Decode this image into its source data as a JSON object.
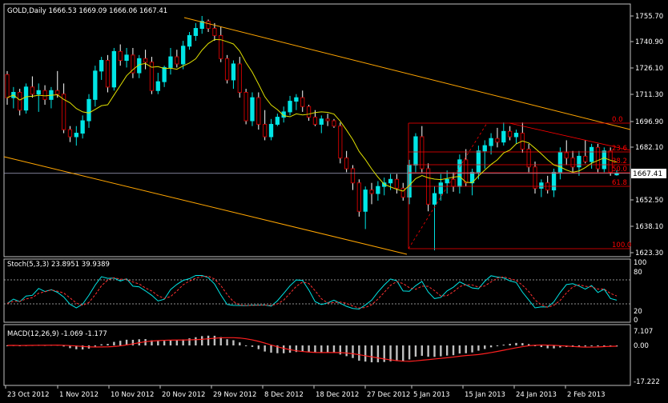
{
  "main_panel": {
    "title": "GOLD,Daily  1666.53 1669.09 1666.06 1667.41",
    "current_price": "1667.41",
    "y_ticks": [
      "1755.70",
      "1740.90",
      "1726.10",
      "1711.30",
      "1696.90",
      "1682.10",
      "1667.41",
      "1652.50",
      "1638.10",
      "1623.30"
    ],
    "fib_levels": [
      "0.0",
      "23.6",
      "38.2",
      "50.0",
      "61.8",
      "100.0"
    ]
  },
  "stoch_panel": {
    "title": "Stoch(5,3,3) 23.8951 39.9389",
    "y_ticks": [
      "100",
      "80",
      "20",
      "0"
    ]
  },
  "macd_panel": {
    "title": "MACD(12,26,9) -1.069 -1.177",
    "y_ticks": [
      "7.107",
      "0.00",
      "-17.222"
    ]
  },
  "x_ticks": [
    "23 Oct 2012",
    "1 Nov 2012",
    "10 Nov 2012",
    "20 Nov 2012",
    "29 Nov 2012",
    "8 Dec 2012",
    "18 Dec 2012",
    "27 Dec 2012",
    "5 Jan 2013",
    "15 Jan 2013",
    "24 Jan 2013",
    "2 Feb 2013"
  ],
  "colors": {
    "background": "#000000",
    "bull_candle": "#00e5e5",
    "bear_candle": "#c00000",
    "ma_line": "#e0e000",
    "channel": "#ffa500",
    "fib": "#ff0000",
    "stoch_main": "#00e5e5",
    "stoch_signal": "#ff3030",
    "macd_hist": "#c0c0c0",
    "macd_signal": "#ff2020"
  },
  "chart_data": {
    "type": "candlestick",
    "symbol": "GOLD",
    "timeframe": "Daily",
    "candles_ohlc": [
      [
        1723,
        1725,
        1706,
        1710
      ],
      [
        1710,
        1716,
        1704,
        1713
      ],
      [
        1713,
        1715,
        1700,
        1703
      ],
      [
        1703,
        1718,
        1701,
        1716
      ],
      [
        1716,
        1722,
        1710,
        1712
      ],
      [
        1712,
        1718,
        1702,
        1714
      ],
      [
        1714,
        1717,
        1706,
        1709
      ],
      [
        1709,
        1716,
        1704,
        1714
      ],
      [
        1714,
        1725,
        1710,
        1712
      ],
      [
        1712,
        1718,
        1690,
        1692
      ],
      [
        1692,
        1694,
        1685,
        1688
      ],
      [
        1688,
        1694,
        1683,
        1690
      ],
      [
        1690,
        1700,
        1687,
        1697
      ],
      [
        1697,
        1712,
        1693,
        1709
      ],
      [
        1709,
        1728,
        1705,
        1725
      ],
      [
        1725,
        1733,
        1720,
        1731
      ],
      [
        1731,
        1734,
        1713,
        1716
      ],
      [
        1716,
        1738,
        1714,
        1736
      ],
      [
        1736,
        1740,
        1728,
        1731
      ],
      [
        1731,
        1738,
        1727,
        1734
      ],
      [
        1734,
        1738,
        1721,
        1724
      ],
      [
        1724,
        1734,
        1721,
        1732
      ],
      [
        1732,
        1737,
        1726,
        1730
      ],
      [
        1730,
        1733,
        1712,
        1714
      ],
      [
        1714,
        1724,
        1712,
        1719
      ],
      [
        1719,
        1728,
        1716,
        1727
      ],
      [
        1727,
        1738,
        1723,
        1733
      ],
      [
        1733,
        1737,
        1727,
        1729
      ],
      [
        1729,
        1742,
        1726,
        1739
      ],
      [
        1739,
        1747,
        1737,
        1745
      ],
      [
        1745,
        1752,
        1742,
        1749
      ],
      [
        1749,
        1756,
        1746,
        1753
      ],
      [
        1753,
        1754,
        1747,
        1749
      ],
      [
        1749,
        1752,
        1742,
        1745
      ],
      [
        1745,
        1750,
        1730,
        1732
      ],
      [
        1732,
        1734,
        1718,
        1720
      ],
      [
        1720,
        1731,
        1715,
        1729
      ],
      [
        1729,
        1733,
        1710,
        1713
      ],
      [
        1713,
        1715,
        1695,
        1697
      ],
      [
        1697,
        1713,
        1694,
        1710
      ],
      [
        1710,
        1713,
        1692,
        1695
      ],
      [
        1695,
        1703,
        1686,
        1688
      ],
      [
        1688,
        1698,
        1686,
        1695
      ],
      [
        1695,
        1701,
        1694,
        1699
      ],
      [
        1699,
        1705,
        1696,
        1702
      ],
      [
        1702,
        1711,
        1700,
        1708
      ],
      [
        1708,
        1712,
        1703,
        1710
      ],
      [
        1710,
        1714,
        1702,
        1705
      ],
      [
        1705,
        1706,
        1697,
        1699
      ],
      [
        1699,
        1703,
        1694,
        1695
      ],
      [
        1695,
        1700,
        1690,
        1698
      ],
      [
        1698,
        1701,
        1694,
        1697
      ],
      [
        1697,
        1698,
        1693,
        1694
      ],
      [
        1694,
        1696,
        1673,
        1676
      ],
      [
        1676,
        1680,
        1668,
        1670
      ],
      [
        1670,
        1672,
        1658,
        1662
      ],
      [
        1662,
        1664,
        1643,
        1646
      ],
      [
        1646,
        1660,
        1636,
        1658
      ],
      [
        1658,
        1662,
        1650,
        1656
      ],
      [
        1656,
        1663,
        1652,
        1660
      ],
      [
        1660,
        1665,
        1655,
        1662
      ],
      [
        1662,
        1667,
        1658,
        1664
      ],
      [
        1664,
        1667,
        1656,
        1659
      ],
      [
        1659,
        1662,
        1652,
        1654
      ],
      [
        1654,
        1675,
        1650,
        1672
      ],
      [
        1672,
        1690,
        1668,
        1688
      ],
      [
        1688,
        1694,
        1668,
        1670
      ],
      [
        1670,
        1673,
        1646,
        1650
      ],
      [
        1650,
        1660,
        1624,
        1656
      ],
      [
        1656,
        1667,
        1652,
        1662
      ],
      [
        1662,
        1669,
        1656,
        1664
      ],
      [
        1664,
        1668,
        1657,
        1660
      ],
      [
        1660,
        1678,
        1656,
        1675
      ],
      [
        1675,
        1681,
        1660,
        1662
      ],
      [
        1662,
        1670,
        1655,
        1668
      ],
      [
        1668,
        1683,
        1664,
        1680
      ],
      [
        1680,
        1686,
        1670,
        1683
      ],
      [
        1683,
        1690,
        1678,
        1687
      ],
      [
        1687,
        1693,
        1682,
        1685
      ],
      [
        1685,
        1696,
        1683,
        1691
      ],
      [
        1691,
        1694,
        1686,
        1688
      ],
      [
        1688,
        1692,
        1684,
        1690
      ],
      [
        1690,
        1696,
        1679,
        1681
      ],
      [
        1681,
        1684,
        1668,
        1671
      ],
      [
        1671,
        1674,
        1656,
        1659
      ],
      [
        1659,
        1664,
        1654,
        1662
      ],
      [
        1662,
        1666,
        1656,
        1658
      ],
      [
        1658,
        1670,
        1654,
        1668
      ],
      [
        1668,
        1682,
        1664,
        1679
      ],
      [
        1679,
        1686,
        1672,
        1676
      ],
      [
        1676,
        1680,
        1668,
        1671
      ],
      [
        1671,
        1680,
        1666,
        1677
      ],
      [
        1677,
        1686,
        1673,
        1674
      ],
      [
        1674,
        1684,
        1670,
        1682
      ],
      [
        1682,
        1684,
        1668,
        1670
      ],
      [
        1670,
        1682,
        1668,
        1680
      ],
      [
        1680,
        1682,
        1666,
        1668
      ],
      [
        1666.53,
        1669.09,
        1666.06,
        1667.41
      ]
    ],
    "ylim": [
      1620,
      1762
    ]
  }
}
